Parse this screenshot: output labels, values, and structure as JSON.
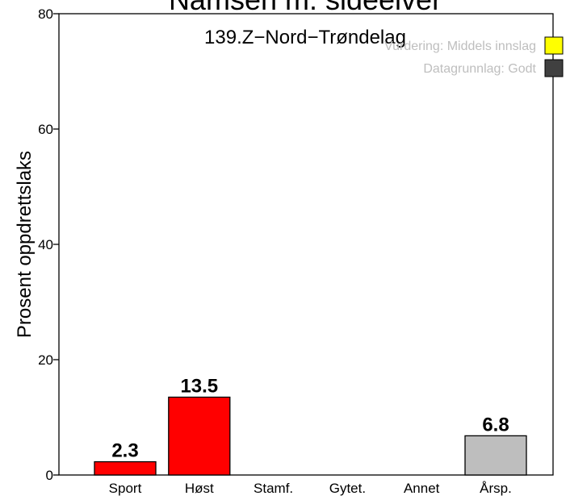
{
  "chart_data": {
    "type": "bar",
    "title": "Namsen m. sideelver",
    "subtitle": "139.Z−Nord−Trøndelag",
    "y_label": "Prosent oppdrettslaks",
    "categories": [
      "Sport",
      "Høst",
      "Stamf.",
      "Gytet.",
      "Annet",
      "Årsp."
    ],
    "values": [
      2.3,
      13.5,
      null,
      null,
      null,
      6.8
    ],
    "colors": [
      "#ff0000",
      "#ff0000",
      "#ff0000",
      "#ff0000",
      "#ff0000",
      "#bebebe"
    ],
    "ylim": [
      0,
      80
    ],
    "yticks": [
      0,
      20,
      40,
      60,
      80
    ],
    "legend": [
      {
        "label": "Vurdering: Middels innslag",
        "color": "#ffff00"
      },
      {
        "label": "Datagrunnlag: Godt",
        "color": "#404040"
      }
    ]
  }
}
